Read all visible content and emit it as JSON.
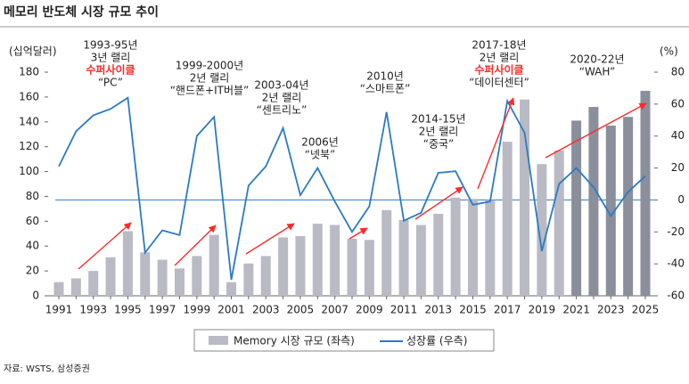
{
  "chart_data": {
    "type": "bar-line",
    "title": "메모리 반도체 시장 규모 추이",
    "y_label": "(십억달러)",
    "y2_label": "(%)",
    "source": "자료: WSTS, 삼성증권",
    "categories": [
      "1991",
      null,
      "1993",
      null,
      "1995",
      null,
      "1997",
      null,
      "1999",
      null,
      "2001",
      null,
      "2003",
      null,
      "2005",
      null,
      "2007",
      null,
      "2009",
      null,
      "2011",
      null,
      "2013",
      null,
      "2015",
      null,
      "2017",
      null,
      "2019",
      null,
      "2021",
      null,
      "2023",
      null,
      "2025"
    ],
    "series": [
      {
        "name": "Memory 시장 규모 (좌측)",
        "type": "bar",
        "color": "#b9bac4",
        "colors": [
          "#b9bac4",
          "#b9bac4",
          "#b9bac4",
          "#b9bac4",
          "#b9bac4",
          "#b9bac4",
          "#b9bac4",
          "#b9bac4",
          "#b9bac4",
          "#b9bac4",
          "#b9bac4",
          "#b9bac4",
          "#b9bac4",
          "#b9bac4",
          "#b9bac4",
          "#b9bac4",
          "#b9bac4",
          "#b9bac4",
          "#b9bac4",
          "#b9bac4",
          "#b9bac4",
          "#b9bac4",
          "#b9bac4",
          "#b9bac4",
          "#b9bac4",
          "#b9bac4",
          "#b9bac4",
          "#b9bac4",
          "#b9bac4",
          "#b9bac4",
          "#8b8e9b",
          "#8b8e9b",
          "#8b8e9b",
          "#8b8e9b",
          "#8b8e9b"
        ],
        "values": [
          11,
          14,
          20,
          31,
          52,
          35,
          29,
          22,
          32,
          49,
          11,
          26,
          32,
          47,
          48,
          58,
          57,
          46,
          45,
          69,
          61,
          57,
          66,
          79,
          78,
          77,
          124,
          158,
          106,
          117,
          141,
          152,
          137,
          144,
          165
        ]
      },
      {
        "name": "성장률 (우측)",
        "type": "line",
        "axis": "y2",
        "color": "#2a7bc4",
        "values": [
          21,
          43,
          53,
          57,
          64,
          -33,
          -19,
          -22,
          40,
          52,
          -50,
          9,
          21,
          45,
          3,
          20,
          -1,
          -20,
          -4,
          55,
          -13,
          -8,
          17,
          18,
          -3,
          -1,
          62,
          42,
          -32,
          10,
          20,
          8,
          -10,
          5,
          15
        ]
      }
    ],
    "ylim": [
      0,
      180
    ],
    "yticks": [
      0,
      20,
      40,
      60,
      80,
      100,
      120,
      140,
      160,
      180
    ],
    "y2lim": [
      -60,
      80
    ],
    "y2ticks": [
      -60,
      -40,
      -20,
      0,
      20,
      40,
      60,
      80
    ],
    "annotations": [
      {
        "lines": [
          "1993-95년",
          "3년 랠리",
          {
            "text": "수퍼사이클",
            "color": "#ff2a2a"
          },
          "“PC”"
        ]
      },
      {
        "lines": [
          "1999-2000년",
          "2년 랠리",
          "“핸드폰+IT버블”"
        ]
      },
      {
        "lines": [
          "2003-04년",
          "2년 랠리",
          "“센트리노”"
        ]
      },
      {
        "lines": [
          "2006년",
          "“넷북”"
        ]
      },
      {
        "lines": [
          "2010년",
          "“스마트폰”"
        ]
      },
      {
        "lines": [
          "2014-15년",
          "2년 랠리",
          "“중국”"
        ]
      },
      {
        "lines": [
          "2017-18년",
          "2년 랠리",
          {
            "text": "수퍼사이클",
            "color": "#ff2a2a"
          },
          "“데이터센터”"
        ]
      },
      {
        "lines": [
          "2020-22년",
          "“WAH”"
        ]
      }
    ]
  }
}
